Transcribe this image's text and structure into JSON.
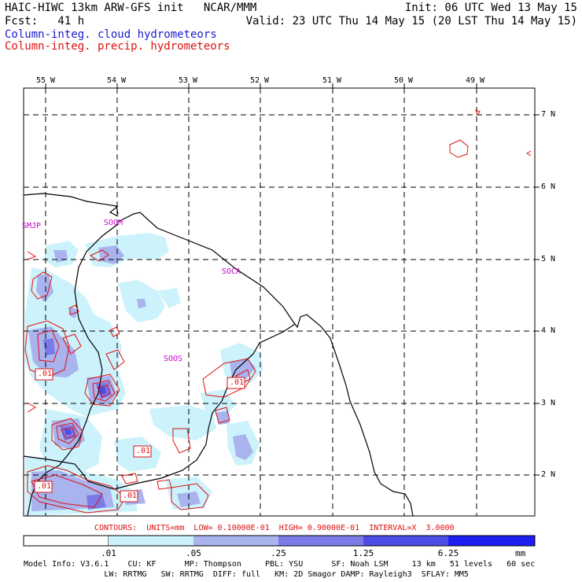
{
  "header": {
    "title_left": "HAIC-HIWC 13km ARW-GFS init   NCAR/MMM",
    "init": "Init: 06 UTC Wed 13 May 15",
    "fcst": "Fcst:   41 h",
    "valid": "Valid: 23 UTC Thu 14 May 15 (20 LST Thu 14 May 15)",
    "legend_cloud": "Column-integ. cloud hydrometeors",
    "legend_precip": "Column-integ. precip. hydrometeors"
  },
  "colors": {
    "cloud_text": "#1a1acc",
    "precip_text": "#dd1111",
    "shade_1": "#ccf2fb",
    "shade_2": "#a9b3ee",
    "shade_3": "#7b7be8",
    "shade_4": "#4d4de6",
    "shade_5": "#1e1ef0",
    "coast": "#000000",
    "contour": "#dd1111",
    "station": "#cc00cc"
  },
  "axes": {
    "lon_labels": [
      "55 W",
      "54 W",
      "53 W",
      "52 W",
      "51 W",
      "50 W",
      "49 W"
    ],
    "lat_labels": [
      "7 N",
      "6 N",
      "5 N",
      "4 N",
      "3 N",
      "2 N"
    ]
  },
  "stations": [
    "SMJP",
    "SOCM",
    "SOCA",
    "SOOS"
  ],
  "contour_labels": [
    ".01",
    ".01",
    ".01",
    ".01",
    ".01"
  ],
  "contours_note": "CONTOURS:  UNITS=mm  LOW= 0.10000E-01  HIGH= 0.90000E-01  INTERVAL=X  3.0000",
  "colorbar": {
    "labels": [
      ".01",
      ".05",
      ".25",
      "1.25",
      "6.25"
    ],
    "unit": "mm"
  },
  "model_info": {
    "line1": "Model Info: V3.6.1    CU: KF      MP: Thompson     PBL: YSU      SF: Noah LSM     13 km   51 levels   60 sec",
    "line2": "                 LW: RRTMG   SW: RRTMG  DIFF: full   KM: 2D Smagor DAMP: Rayleigh3  SFLAY: MM5"
  }
}
